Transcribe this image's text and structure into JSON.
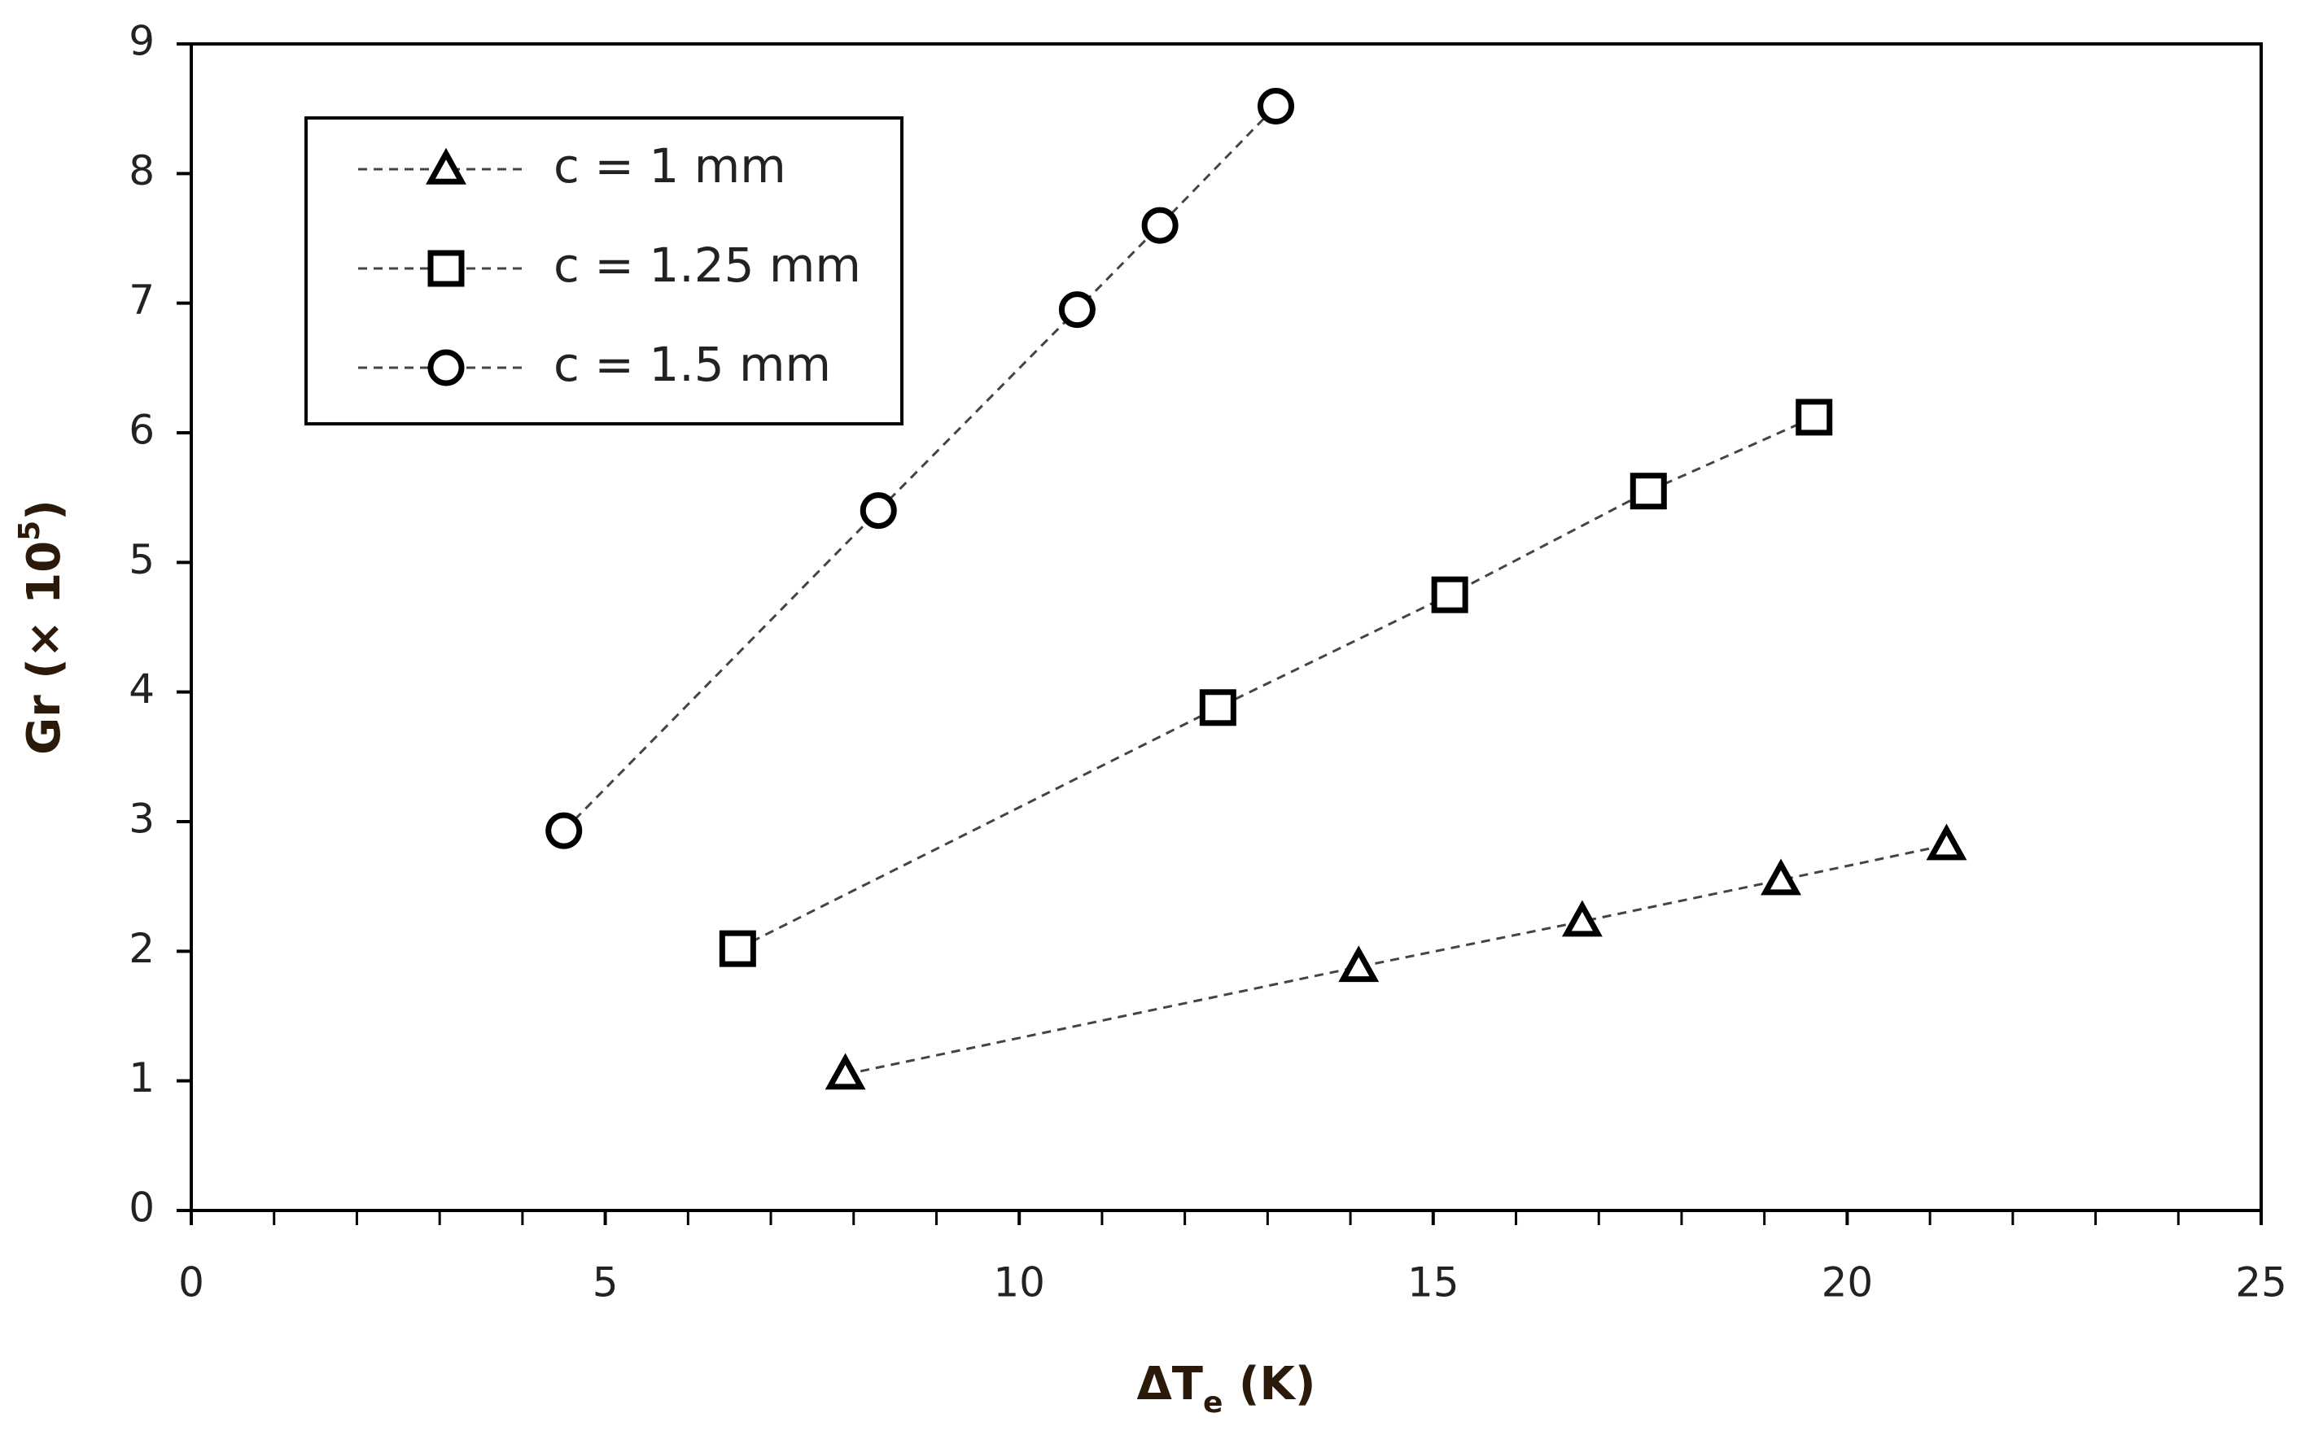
{
  "chart_data": {
    "type": "scatter",
    "x_label": [
      "ΔT",
      "e",
      " (K)"
    ],
    "y_label": [
      "Gr (× 10",
      "5",
      ")"
    ],
    "xlim": [
      0,
      25
    ],
    "xticks": [
      0,
      5,
      10,
      15,
      20,
      25
    ],
    "xminorticks": [
      1,
      2,
      3,
      4,
      6,
      7,
      8,
      9,
      11,
      12,
      13,
      14,
      16,
      17,
      18,
      19,
      21,
      22,
      23,
      24
    ],
    "ylim": [
      0,
      9
    ],
    "yticks": [
      0,
      1,
      2,
      3,
      4,
      5,
      6,
      7,
      8,
      9
    ],
    "legend": "upper left",
    "series": [
      {
        "name": "c = 1 mm",
        "marker": "triangle",
        "color": "#000000",
        "line": "dashed",
        "x": [
          7.9,
          14.1,
          16.8,
          19.2,
          21.2
        ],
        "values": [
          1.05,
          1.88,
          2.23,
          2.55,
          2.82
        ]
      },
      {
        "name": "c = 1.25 mm",
        "marker": "square",
        "color": "#000000",
        "line": "dashed",
        "x": [
          6.6,
          12.4,
          15.2,
          17.6,
          19.6
        ],
        "values": [
          2.02,
          3.88,
          4.75,
          5.55,
          6.12
        ]
      },
      {
        "name": "c = 1.5 mm",
        "marker": "circle",
        "color": "#000000",
        "line": "dashed",
        "x": [
          4.5,
          8.3,
          10.7,
          11.7,
          13.1
        ],
        "values": [
          2.93,
          5.4,
          6.95,
          7.6,
          8.52
        ]
      }
    ]
  }
}
